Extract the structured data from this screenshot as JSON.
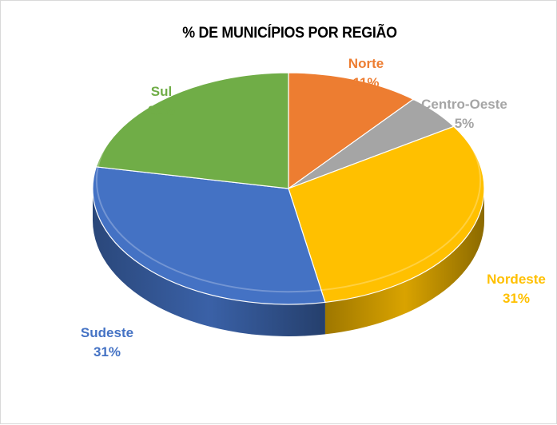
{
  "chart_data": {
    "type": "pie",
    "title": "% DE MUNICÍPIOS POR REGIÃO",
    "slices": [
      {
        "name": "Norte",
        "value": 11,
        "label": "11%",
        "color": "#ED7D31"
      },
      {
        "name": "Centro-Oeste",
        "value": 5,
        "label": "5%",
        "color": "#A5A5A5"
      },
      {
        "name": "Nordeste",
        "value": 31,
        "label": "31%",
        "color": "#FFC000"
      },
      {
        "name": "Sudeste",
        "value": 31,
        "label": "31%",
        "color": "#4472C4"
      },
      {
        "name": "Sul",
        "value": 22,
        "label": "22%",
        "color": "#70AD47"
      }
    ],
    "style": "3d"
  }
}
